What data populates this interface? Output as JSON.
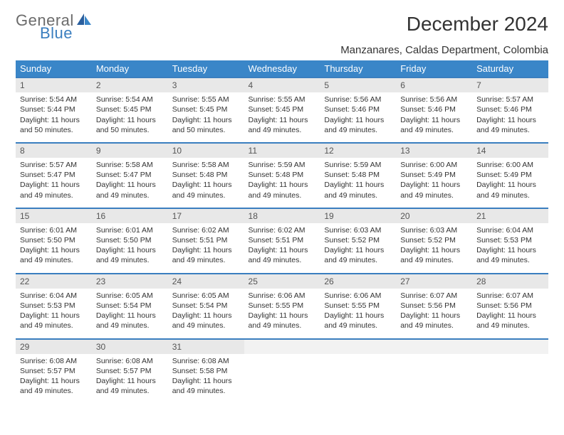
{
  "brand": {
    "word1": "General",
    "word2": "Blue"
  },
  "title": "December 2024",
  "location": "Manzanares, Caldas Department, Colombia",
  "colors": {
    "header_bg": "#3a86c8",
    "header_text": "#ffffff",
    "row_border": "#3a7ebf",
    "daynum_bg": "#e8e8e8",
    "logo_gray": "#6b6b6b",
    "logo_blue": "#3a7ebf",
    "body_text": "#333333",
    "page_bg": "#ffffff"
  },
  "weekdays": [
    "Sunday",
    "Monday",
    "Tuesday",
    "Wednesday",
    "Thursday",
    "Friday",
    "Saturday"
  ],
  "weeks": [
    [
      {
        "n": "1",
        "sr": "5:54 AM",
        "ss": "5:44 PM",
        "dl": "11 hours and 50 minutes."
      },
      {
        "n": "2",
        "sr": "5:54 AM",
        "ss": "5:45 PM",
        "dl": "11 hours and 50 minutes."
      },
      {
        "n": "3",
        "sr": "5:55 AM",
        "ss": "5:45 PM",
        "dl": "11 hours and 50 minutes."
      },
      {
        "n": "4",
        "sr": "5:55 AM",
        "ss": "5:45 PM",
        "dl": "11 hours and 49 minutes."
      },
      {
        "n": "5",
        "sr": "5:56 AM",
        "ss": "5:46 PM",
        "dl": "11 hours and 49 minutes."
      },
      {
        "n": "6",
        "sr": "5:56 AM",
        "ss": "5:46 PM",
        "dl": "11 hours and 49 minutes."
      },
      {
        "n": "7",
        "sr": "5:57 AM",
        "ss": "5:46 PM",
        "dl": "11 hours and 49 minutes."
      }
    ],
    [
      {
        "n": "8",
        "sr": "5:57 AM",
        "ss": "5:47 PM",
        "dl": "11 hours and 49 minutes."
      },
      {
        "n": "9",
        "sr": "5:58 AM",
        "ss": "5:47 PM",
        "dl": "11 hours and 49 minutes."
      },
      {
        "n": "10",
        "sr": "5:58 AM",
        "ss": "5:48 PM",
        "dl": "11 hours and 49 minutes."
      },
      {
        "n": "11",
        "sr": "5:59 AM",
        "ss": "5:48 PM",
        "dl": "11 hours and 49 minutes."
      },
      {
        "n": "12",
        "sr": "5:59 AM",
        "ss": "5:48 PM",
        "dl": "11 hours and 49 minutes."
      },
      {
        "n": "13",
        "sr": "6:00 AM",
        "ss": "5:49 PM",
        "dl": "11 hours and 49 minutes."
      },
      {
        "n": "14",
        "sr": "6:00 AM",
        "ss": "5:49 PM",
        "dl": "11 hours and 49 minutes."
      }
    ],
    [
      {
        "n": "15",
        "sr": "6:01 AM",
        "ss": "5:50 PM",
        "dl": "11 hours and 49 minutes."
      },
      {
        "n": "16",
        "sr": "6:01 AM",
        "ss": "5:50 PM",
        "dl": "11 hours and 49 minutes."
      },
      {
        "n": "17",
        "sr": "6:02 AM",
        "ss": "5:51 PM",
        "dl": "11 hours and 49 minutes."
      },
      {
        "n": "18",
        "sr": "6:02 AM",
        "ss": "5:51 PM",
        "dl": "11 hours and 49 minutes."
      },
      {
        "n": "19",
        "sr": "6:03 AM",
        "ss": "5:52 PM",
        "dl": "11 hours and 49 minutes."
      },
      {
        "n": "20",
        "sr": "6:03 AM",
        "ss": "5:52 PM",
        "dl": "11 hours and 49 minutes."
      },
      {
        "n": "21",
        "sr": "6:04 AM",
        "ss": "5:53 PM",
        "dl": "11 hours and 49 minutes."
      }
    ],
    [
      {
        "n": "22",
        "sr": "6:04 AM",
        "ss": "5:53 PM",
        "dl": "11 hours and 49 minutes."
      },
      {
        "n": "23",
        "sr": "6:05 AM",
        "ss": "5:54 PM",
        "dl": "11 hours and 49 minutes."
      },
      {
        "n": "24",
        "sr": "6:05 AM",
        "ss": "5:54 PM",
        "dl": "11 hours and 49 minutes."
      },
      {
        "n": "25",
        "sr": "6:06 AM",
        "ss": "5:55 PM",
        "dl": "11 hours and 49 minutes."
      },
      {
        "n": "26",
        "sr": "6:06 AM",
        "ss": "5:55 PM",
        "dl": "11 hours and 49 minutes."
      },
      {
        "n": "27",
        "sr": "6:07 AM",
        "ss": "5:56 PM",
        "dl": "11 hours and 49 minutes."
      },
      {
        "n": "28",
        "sr": "6:07 AM",
        "ss": "5:56 PM",
        "dl": "11 hours and 49 minutes."
      }
    ],
    [
      {
        "n": "29",
        "sr": "6:08 AM",
        "ss": "5:57 PM",
        "dl": "11 hours and 49 minutes."
      },
      {
        "n": "30",
        "sr": "6:08 AM",
        "ss": "5:57 PM",
        "dl": "11 hours and 49 minutes."
      },
      {
        "n": "31",
        "sr": "6:08 AM",
        "ss": "5:58 PM",
        "dl": "11 hours and 49 minutes."
      },
      null,
      null,
      null,
      null
    ]
  ],
  "labels": {
    "sunrise": "Sunrise:",
    "sunset": "Sunset:",
    "daylight": "Daylight:"
  }
}
